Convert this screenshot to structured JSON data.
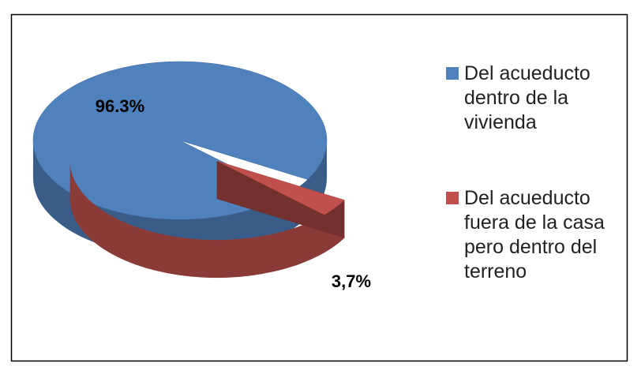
{
  "chart_data": {
    "type": "pie",
    "three_d": true,
    "categories": [
      "Del acueducto dentro de la vivienda",
      "Del acueducto fuera de la casa pero dentro del terreno"
    ],
    "values": [
      96.3,
      3.7
    ],
    "value_labels": [
      "96.3%",
      "3,7%"
    ],
    "colors": [
      "#4f81bd",
      "#c0504d"
    ],
    "legend": "right"
  }
}
